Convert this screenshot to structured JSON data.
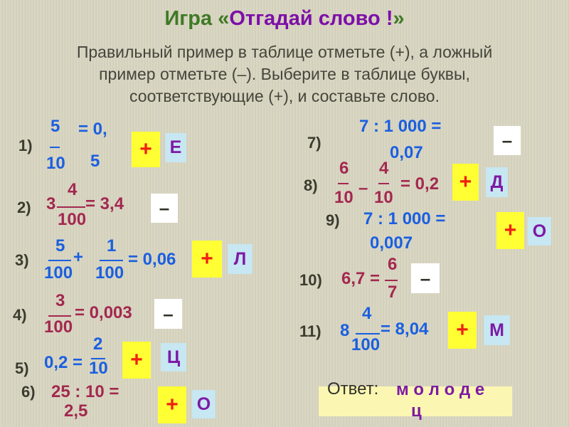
{
  "title": {
    "prefix": "Игра «",
    "main": "Отгадай слово !",
    "suffix": "»"
  },
  "instructions": [
    "Правильный пример в таблице отметьте (+), а ложный",
    "пример отметьте (–). Выберите в таблице буквы,",
    "соответствующие (+), и составьте слово."
  ],
  "colors": {
    "correct_mark_bg": "#ffff33",
    "wrong_mark_bg": "#ffffff",
    "letter_bg": "#c7e7f2",
    "blue": "#1a5fe0",
    "maroon": "#a3284f",
    "purple": "#7d1aa6"
  },
  "items": [
    {
      "label": "1)",
      "parts": [
        "5",
        "10",
        "= 0,",
        "5"
      ],
      "mark": "+",
      "letter": "Е"
    },
    {
      "label": "2)",
      "parts": [
        "3",
        "4",
        "100",
        "= 3,4"
      ],
      "mark": "–"
    },
    {
      "label": "3)",
      "parts": [
        "5",
        "100",
        "+",
        "1",
        "100",
        "= 0,06"
      ],
      "mark": "+",
      "letter": "Л"
    },
    {
      "label": "4)",
      "parts": [
        "3",
        "100",
        "= 0,003"
      ],
      "mark": "–"
    },
    {
      "label": "5)",
      "parts": [
        "0,2 =",
        "2",
        "10"
      ],
      "mark": "+",
      "letter": "Ц"
    },
    {
      "label": "6)",
      "parts": [
        "25 : 10 =",
        "2,5"
      ],
      "mark": "+",
      "letter": "О"
    },
    {
      "label": "7)",
      "parts": [
        "7 : 1 000 =",
        "0,07"
      ],
      "mark": "–"
    },
    {
      "label": "8)",
      "parts": [
        "6",
        "10",
        "–",
        "4",
        "10",
        "= 0,2"
      ],
      "mark": "+",
      "letter": "Д"
    },
    {
      "label": "9)",
      "parts": [
        "7 : 1 000 =",
        "0,007"
      ],
      "mark": "+",
      "letter": "О"
    },
    {
      "label": "10)",
      "parts": [
        "6,7 =",
        "6",
        "7"
      ],
      "mark": "–"
    },
    {
      "label": "11)",
      "parts": [
        "8",
        "4",
        "100",
        "= 8,04"
      ],
      "mark": "+",
      "letter": "М"
    }
  ],
  "answer": {
    "label": "Ответ:",
    "word_line1": "м о л о д е",
    "word_line2": "ц"
  }
}
